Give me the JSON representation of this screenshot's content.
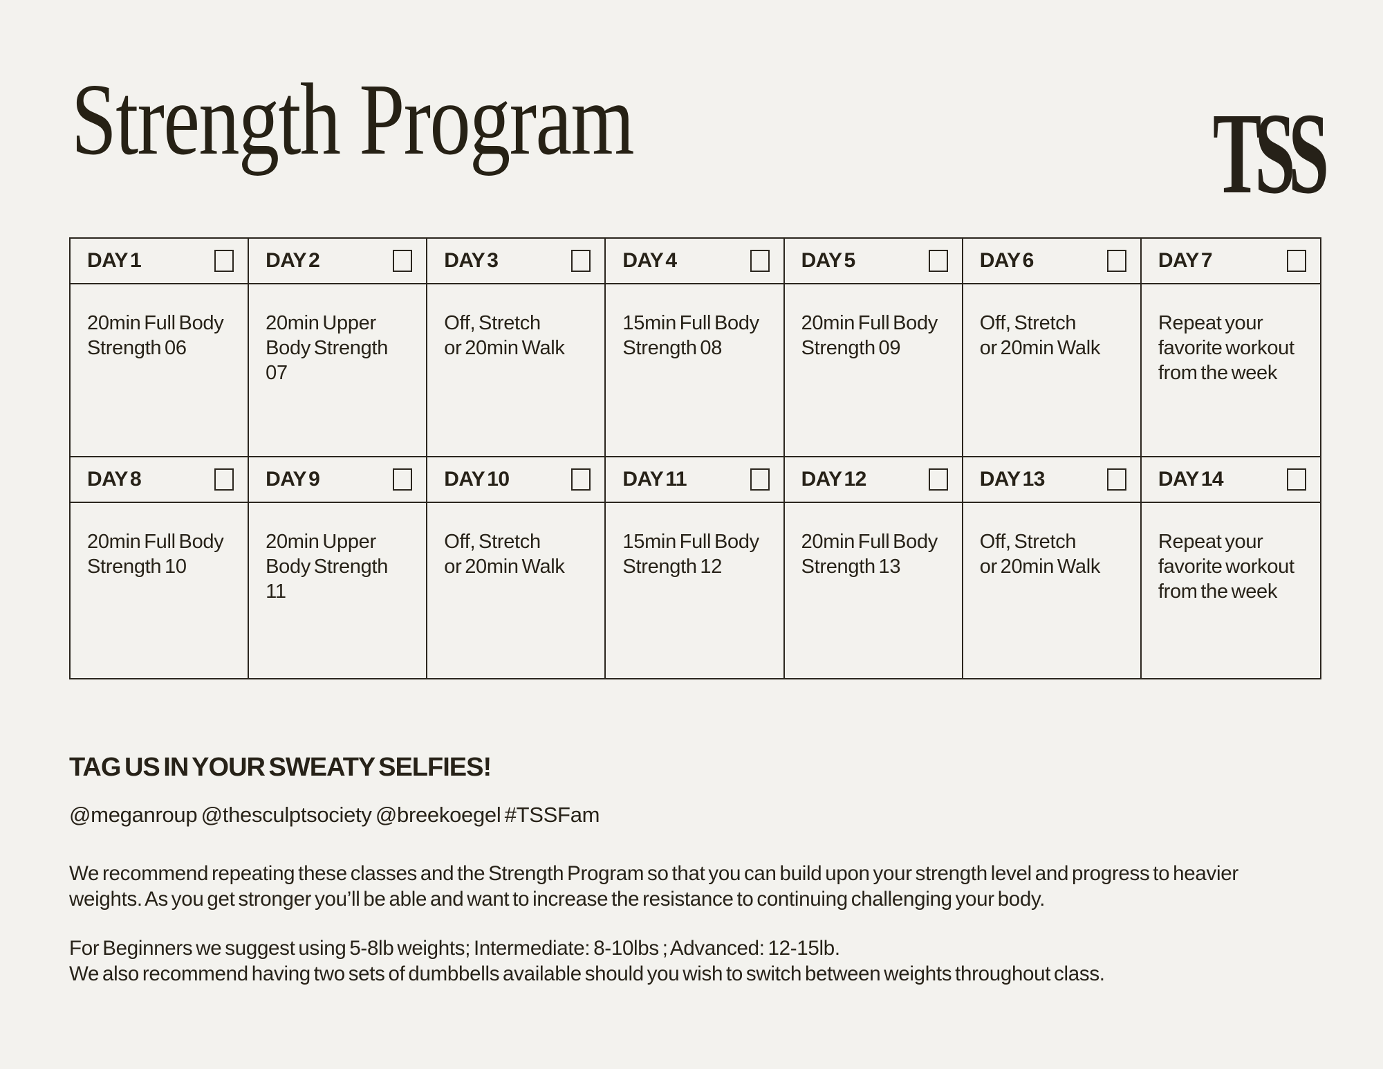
{
  "header": {
    "title": "Strength Program",
    "logo": "TSS"
  },
  "calendar": {
    "days": [
      {
        "label": "DAY 1",
        "activity": "20min Full Body\nStrength 06"
      },
      {
        "label": "DAY 2",
        "activity": "20min Upper\nBody Strength\n07"
      },
      {
        "label": "DAY 3",
        "activity": "Off, Stretch\nor 20min Walk"
      },
      {
        "label": "DAY 4",
        "activity": "15min Full Body\nStrength 08"
      },
      {
        "label": "DAY 5",
        "activity": "20min Full Body\nStrength 09"
      },
      {
        "label": "DAY 6",
        "activity": "Off, Stretch\nor 20min Walk"
      },
      {
        "label": "DAY 7",
        "activity": "Repeat your\nfavorite workout\nfrom the week"
      },
      {
        "label": "DAY 8",
        "activity": "20min Full Body\nStrength 10"
      },
      {
        "label": "DAY 9",
        "activity": "20min Upper\nBody Strength 11"
      },
      {
        "label": "DAY 10",
        "activity": "Off, Stretch\nor 20min Walk"
      },
      {
        "label": "DAY 11",
        "activity": "15min Full Body\nStrength 12"
      },
      {
        "label": "DAY 12",
        "activity": "20min Full Body\nStrength 13"
      },
      {
        "label": "DAY 13",
        "activity": "Off, Stretch\nor 20min Walk"
      },
      {
        "label": "DAY 14",
        "activity": "Repeat your\nfavorite workout\nfrom the week"
      }
    ]
  },
  "footer": {
    "heading": "TAG US IN YOUR SWEATY SELFIES!",
    "social": "@meganroup @thesculptsociety @breekoegel #TSSFam",
    "para_repeat": "We recommend repeating these classes and the Strength Program so that you can build upon your strength level and progress to heavier\nweights. As you get stronger you’ll be able and want to increase the resistance to continuing challenging your body.",
    "para_weights": "For Beginners we suggest using 5-8lb weights; Intermediate: 8-10lbs ; Advanced: 12-15lb.\nWe also recommend having two sets of dumbbells available should you wish to switch between weights throughout class."
  },
  "colors": {
    "background": "#f3f2ee",
    "ink": "#272218",
    "border": "#2b261e"
  }
}
